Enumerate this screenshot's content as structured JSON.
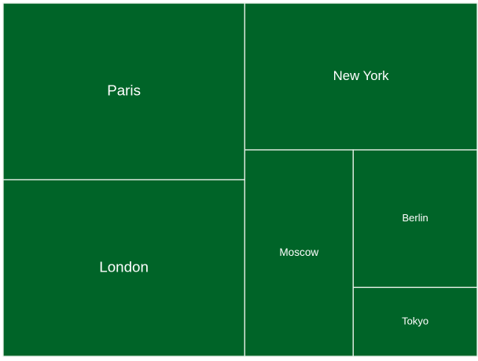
{
  "chart_data": {
    "type": "treemap",
    "title": "",
    "leaf_color": "#006428",
    "border_color": "#e8f0e8",
    "background_color": "#ffffff",
    "items": [
      {
        "name": "Paris",
        "value": 1.0
      },
      {
        "name": "London",
        "value": 1.0
      },
      {
        "name": "New York",
        "value": 0.8
      },
      {
        "name": "Moscow",
        "value": 0.525
      },
      {
        "name": "Berlin",
        "value": 0.4
      },
      {
        "name": "Tokyo",
        "value": 0.2
      }
    ]
  }
}
